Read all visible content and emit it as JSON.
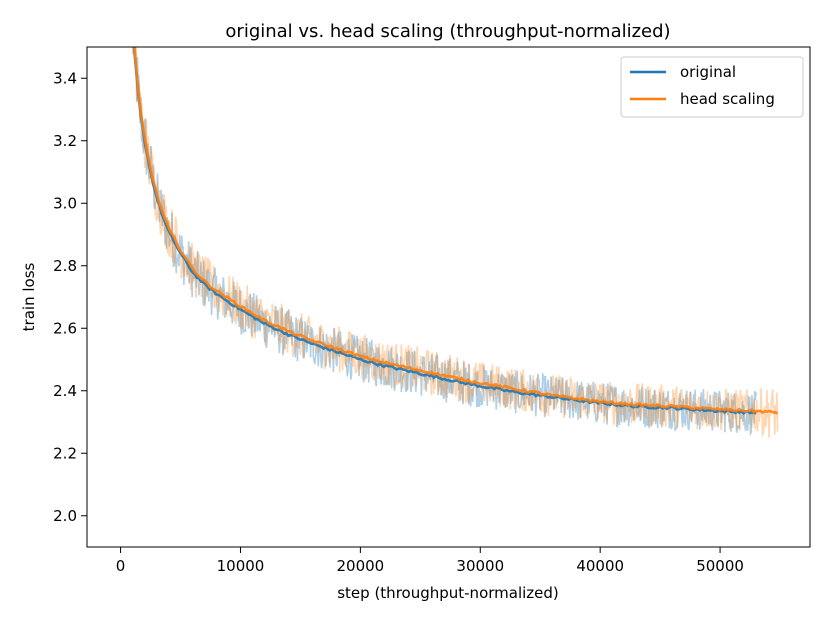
{
  "chart_data": {
    "type": "line",
    "title": "original vs. head scaling (throughput-normalized)",
    "xlabel": "step (throughput-normalized)",
    "ylabel": "train loss",
    "xlim": [
      -2800,
      57500
    ],
    "ylim": [
      1.9,
      3.5
    ],
    "xticks": [
      0,
      10000,
      20000,
      30000,
      40000,
      50000
    ],
    "xtick_labels": [
      "0",
      "10000",
      "20000",
      "30000",
      "40000",
      "50000"
    ],
    "yticks": [
      2.0,
      2.2,
      2.4,
      2.6,
      2.8,
      3.0,
      3.2,
      3.4
    ],
    "ytick_labels": [
      "2.0",
      "2.2",
      "2.4",
      "2.6",
      "2.8",
      "3.0",
      "3.2",
      "3.4"
    ],
    "grid": false,
    "legend": "top-right",
    "series": [
      {
        "name": "original",
        "color": "#1f77b4",
        "x": [
          1000,
          1300,
          1600,
          2000,
          2500,
          3000,
          3500,
          4000,
          5000,
          6000,
          7000,
          8000,
          10000,
          12000,
          14000,
          16000,
          18000,
          20000,
          22000,
          25000,
          28000,
          30000,
          33000,
          36000,
          40000,
          43000,
          46000,
          50000,
          53000
        ],
        "y": [
          3.55,
          3.42,
          3.3,
          3.2,
          3.1,
          3.02,
          2.96,
          2.91,
          2.84,
          2.78,
          2.74,
          2.71,
          2.66,
          2.615,
          2.58,
          2.55,
          2.525,
          2.5,
          2.48,
          2.455,
          2.43,
          2.415,
          2.395,
          2.38,
          2.36,
          2.35,
          2.345,
          2.335,
          2.33
        ],
        "band": [
          0.12,
          0.12,
          0.11,
          0.1,
          0.1,
          0.09,
          0.09,
          0.09,
          0.09,
          0.085,
          0.085,
          0.08,
          0.08,
          0.08,
          0.08,
          0.075,
          0.075,
          0.075,
          0.075,
          0.075,
          0.075,
          0.07,
          0.07,
          0.07,
          0.07,
          0.07,
          0.07,
          0.07,
          0.07
        ]
      },
      {
        "name": "head scaling",
        "color": "#ff7f0e",
        "x": [
          1000,
          1300,
          1600,
          2000,
          2500,
          3000,
          3500,
          4000,
          5000,
          6000,
          7000,
          8000,
          10000,
          12000,
          14000,
          16000,
          18000,
          20000,
          22000,
          25000,
          28000,
          30000,
          33000,
          36000,
          40000,
          43000,
          46000,
          50000,
          53000,
          54800
        ],
        "y": [
          3.56,
          3.43,
          3.31,
          3.21,
          3.11,
          3.03,
          2.97,
          2.92,
          2.85,
          2.79,
          2.75,
          2.72,
          2.67,
          2.625,
          2.59,
          2.56,
          2.535,
          2.51,
          2.49,
          2.465,
          2.44,
          2.425,
          2.405,
          2.385,
          2.365,
          2.355,
          2.35,
          2.34,
          2.335,
          2.33
        ],
        "band": [
          0.12,
          0.12,
          0.11,
          0.1,
          0.1,
          0.09,
          0.09,
          0.09,
          0.09,
          0.085,
          0.085,
          0.08,
          0.08,
          0.08,
          0.08,
          0.075,
          0.075,
          0.075,
          0.075,
          0.075,
          0.075,
          0.07,
          0.07,
          0.07,
          0.07,
          0.07,
          0.07,
          0.07,
          0.07,
          0.09
        ]
      }
    ]
  }
}
